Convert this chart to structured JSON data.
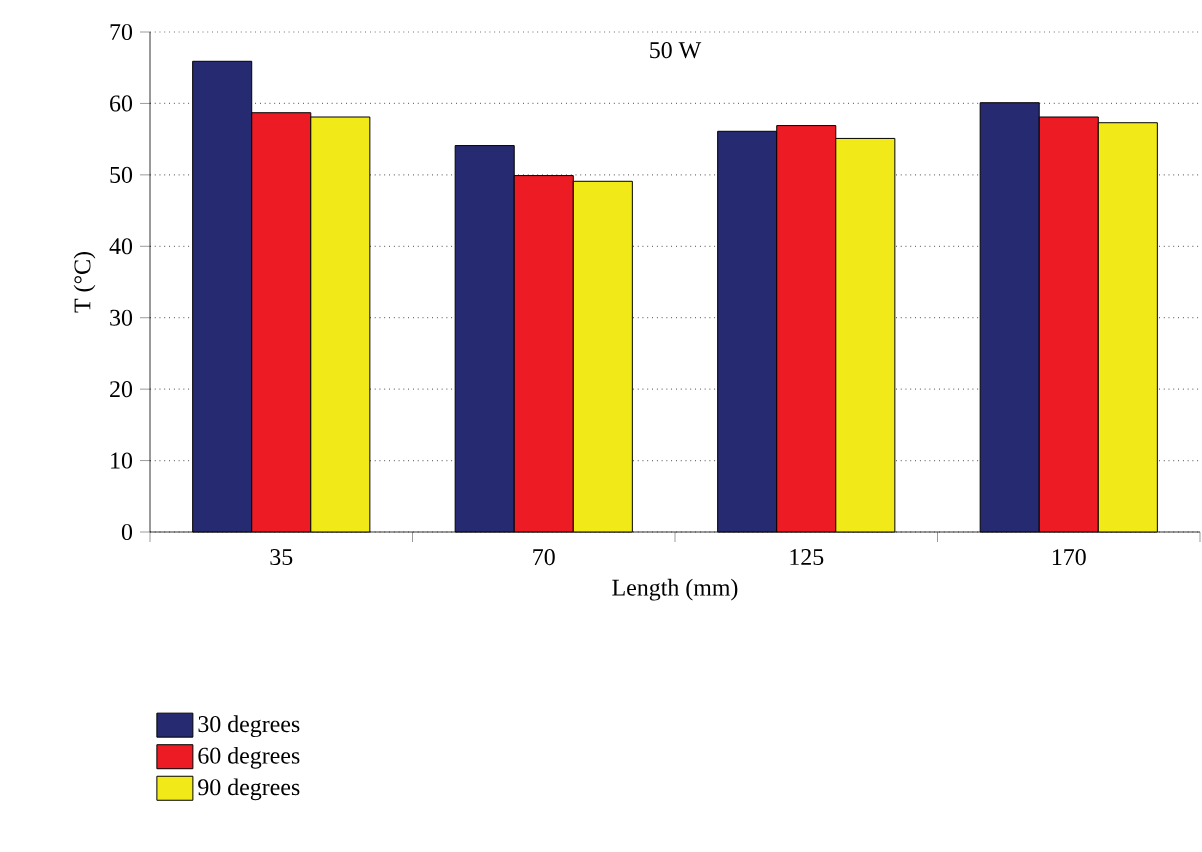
{
  "chart_data": {
    "type": "bar",
    "title": "50 W",
    "xlabel": "Length (mm)",
    "ylabel": "T (°C)",
    "categories": [
      "35",
      "70",
      "125",
      "170"
    ],
    "series": [
      {
        "name": "30 degrees",
        "color": "#262a70",
        "values": [
          65.9,
          54.1,
          56.1,
          60.1
        ]
      },
      {
        "name": "60 degrees",
        "color": "#ed1c24",
        "values": [
          58.7,
          49.9,
          56.9,
          58.1
        ]
      },
      {
        "name": "90 degrees",
        "color": "#f2ea18",
        "values": [
          58.1,
          49.1,
          55.1,
          57.3
        ]
      }
    ],
    "ylim": [
      0,
      70
    ],
    "yticks": [
      0,
      10,
      20,
      30,
      40,
      50,
      60,
      70
    ],
    "grid": "y",
    "legend": "bottom left"
  }
}
